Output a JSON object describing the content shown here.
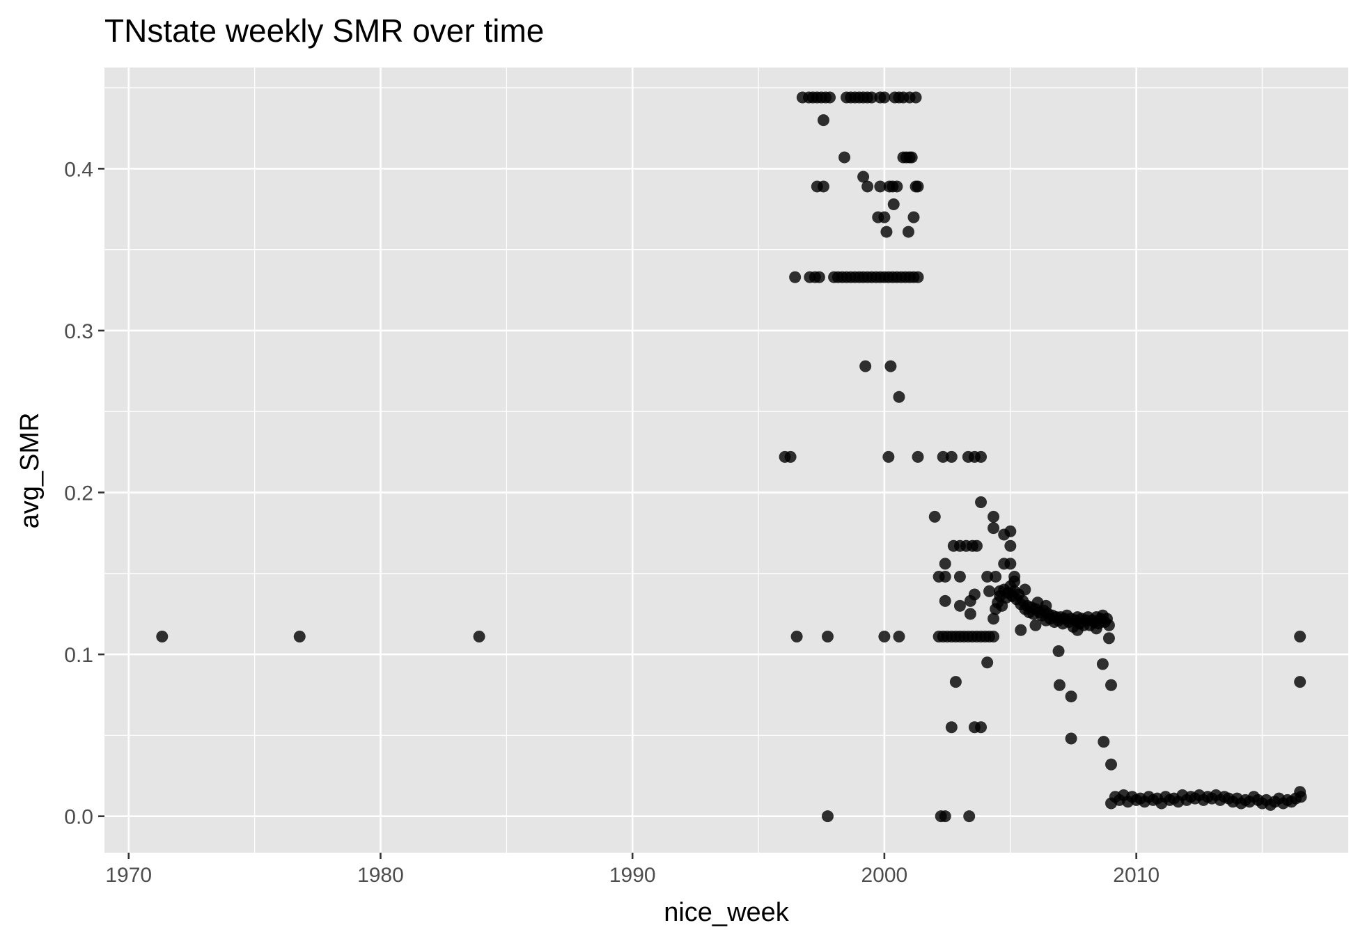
{
  "chart_data": {
    "type": "scatter",
    "title": "TNstate weekly SMR over time",
    "xlabel": "nice_week",
    "ylabel": "avg_SMR",
    "x_axis_type": "date",
    "xlim": [
      "1969-01-15",
      "2018-06-01"
    ],
    "ylim": [
      -0.0225,
      0.4625
    ],
    "x_ticks": [
      {
        "value": "1970-01-01",
        "label": "1970"
      },
      {
        "value": "1980-01-01",
        "label": "1980"
      },
      {
        "value": "1990-01-01",
        "label": "1990"
      },
      {
        "value": "2000-01-01",
        "label": "2000"
      },
      {
        "value": "2010-01-01",
        "label": "2010"
      }
    ],
    "y_ticks": [
      {
        "value": 0.0,
        "label": "0.0"
      },
      {
        "value": 0.1,
        "label": "0.1"
      },
      {
        "value": 0.2,
        "label": "0.2"
      },
      {
        "value": 0.3,
        "label": "0.3"
      },
      {
        "value": 0.4,
        "label": "0.4"
      }
    ],
    "grid": true,
    "legend": "none",
    "point_color": "#000000",
    "point_alpha": 0.8,
    "panel_background": "#e5e5e5",
    "grid_color": "#ffffff",
    "points": [
      {
        "x": "1971-05-01",
        "y": 0.111
      },
      {
        "x": "1976-10-15",
        "y": 0.111
      },
      {
        "x": "1983-12-01",
        "y": 0.111
      },
      {
        "x": "1996-01-20",
        "y": 0.222
      },
      {
        "x": "1996-04-10",
        "y": 0.222
      },
      {
        "x": "1996-06-15",
        "y": 0.333
      },
      {
        "x": "1996-07-10",
        "y": 0.111
      },
      {
        "x": "1996-10-01",
        "y": 0.444
      },
      {
        "x": "1997-01-01",
        "y": 0.444
      },
      {
        "x": "1997-03-01",
        "y": 0.444
      },
      {
        "x": "1997-05-01",
        "y": 0.444
      },
      {
        "x": "1997-07-01",
        "y": 0.444
      },
      {
        "x": "1997-09-01",
        "y": 0.444
      },
      {
        "x": "1997-11-01",
        "y": 0.444
      },
      {
        "x": "1998-07-01",
        "y": 0.444
      },
      {
        "x": "1998-09-01",
        "y": 0.444
      },
      {
        "x": "1998-11-01",
        "y": 0.444
      },
      {
        "x": "1999-01-01",
        "y": 0.444
      },
      {
        "x": "1999-03-01",
        "y": 0.444
      },
      {
        "x": "1999-05-01",
        "y": 0.444
      },
      {
        "x": "1999-07-01",
        "y": 0.444
      },
      {
        "x": "1999-11-01",
        "y": 0.444
      },
      {
        "x": "2000-01-01",
        "y": 0.444
      },
      {
        "x": "2000-06-01",
        "y": 0.444
      },
      {
        "x": "2000-08-01",
        "y": 0.444
      },
      {
        "x": "2000-10-01",
        "y": 0.444
      },
      {
        "x": "2001-01-01",
        "y": 0.444
      },
      {
        "x": "2001-04-01",
        "y": 0.444
      },
      {
        "x": "1997-08-01",
        "y": 0.43
      },
      {
        "x": "1998-06-01",
        "y": 0.407
      },
      {
        "x": "2000-10-01",
        "y": 0.407
      },
      {
        "x": "2000-11-15",
        "y": 0.407
      },
      {
        "x": "2001-01-01",
        "y": 0.407
      },
      {
        "x": "2001-02-01",
        "y": 0.407
      },
      {
        "x": "1999-03-01",
        "y": 0.395
      },
      {
        "x": "1997-05-01",
        "y": 0.389
      },
      {
        "x": "1997-08-01",
        "y": 0.389
      },
      {
        "x": "1999-05-01",
        "y": 0.389
      },
      {
        "x": "1999-11-01",
        "y": 0.389
      },
      {
        "x": "2000-03-15",
        "y": 0.389
      },
      {
        "x": "2000-05-01",
        "y": 0.389
      },
      {
        "x": "2000-07-01",
        "y": 0.389
      },
      {
        "x": "2001-04-01",
        "y": 0.389
      },
      {
        "x": "2001-05-01",
        "y": 0.389
      },
      {
        "x": "2000-05-15",
        "y": 0.378
      },
      {
        "x": "1999-10-01",
        "y": 0.37
      },
      {
        "x": "2000-01-01",
        "y": 0.37
      },
      {
        "x": "2001-03-01",
        "y": 0.37
      },
      {
        "x": "2000-02-01",
        "y": 0.361
      },
      {
        "x": "2000-12-15",
        "y": 0.361
      },
      {
        "x": "1997-01-15",
        "y": 0.333
      },
      {
        "x": "1997-04-01",
        "y": 0.333
      },
      {
        "x": "1997-06-01",
        "y": 0.333
      },
      {
        "x": "1998-01-01",
        "y": 0.333
      },
      {
        "x": "1998-03-01",
        "y": 0.333
      },
      {
        "x": "1998-05-01",
        "y": 0.333
      },
      {
        "x": "1998-07-01",
        "y": 0.333
      },
      {
        "x": "1998-09-01",
        "y": 0.333
      },
      {
        "x": "1998-11-01",
        "y": 0.333
      },
      {
        "x": "1999-01-01",
        "y": 0.333
      },
      {
        "x": "1999-03-01",
        "y": 0.333
      },
      {
        "x": "1999-05-01",
        "y": 0.333
      },
      {
        "x": "1999-07-01",
        "y": 0.333
      },
      {
        "x": "1999-09-01",
        "y": 0.333
      },
      {
        "x": "1999-11-01",
        "y": 0.333
      },
      {
        "x": "2000-01-01",
        "y": 0.333
      },
      {
        "x": "2000-03-01",
        "y": 0.333
      },
      {
        "x": "2000-05-01",
        "y": 0.333
      },
      {
        "x": "2000-07-01",
        "y": 0.333
      },
      {
        "x": "2000-09-01",
        "y": 0.333
      },
      {
        "x": "2000-11-01",
        "y": 0.333
      },
      {
        "x": "2001-01-01",
        "y": 0.333
      },
      {
        "x": "2001-03-01",
        "y": 0.333
      },
      {
        "x": "2001-05-01",
        "y": 0.333
      },
      {
        "x": "1999-04-01",
        "y": 0.278
      },
      {
        "x": "2000-04-01",
        "y": 0.278
      },
      {
        "x": "2000-08-01",
        "y": 0.259
      },
      {
        "x": "1997-10-01",
        "y": 0.111
      },
      {
        "x": "2000-01-01",
        "y": 0.111
      },
      {
        "x": "2000-08-01",
        "y": 0.111
      },
      {
        "x": "1997-10-01",
        "y": 0.0
      },
      {
        "x": "2000-03-01",
        "y": 0.222
      },
      {
        "x": "2001-05-01",
        "y": 0.222
      },
      {
        "x": "2002-05-01",
        "y": 0.222
      },
      {
        "x": "2002-09-01",
        "y": 0.222
      },
      {
        "x": "2003-05-01",
        "y": 0.222
      },
      {
        "x": "2003-08-01",
        "y": 0.222
      },
      {
        "x": "2003-11-01",
        "y": 0.222
      },
      {
        "x": "2003-11-01",
        "y": 0.194
      },
      {
        "x": "2002-01-01",
        "y": 0.185
      },
      {
        "x": "2004-05-01",
        "y": 0.185
      },
      {
        "x": "2004-05-01",
        "y": 0.178
      },
      {
        "x": "2005-01-01",
        "y": 0.176
      },
      {
        "x": "2004-10-01",
        "y": 0.174
      },
      {
        "x": "2002-10-01",
        "y": 0.167
      },
      {
        "x": "2003-01-01",
        "y": 0.167
      },
      {
        "x": "2003-04-01",
        "y": 0.167
      },
      {
        "x": "2003-07-01",
        "y": 0.167
      },
      {
        "x": "2003-09-01",
        "y": 0.167
      },
      {
        "x": "2005-01-01",
        "y": 0.167
      },
      {
        "x": "2002-06-01",
        "y": 0.156
      },
      {
        "x": "2004-10-01",
        "y": 0.156
      },
      {
        "x": "2005-01-01",
        "y": 0.156
      },
      {
        "x": "2002-03-01",
        "y": 0.148
      },
      {
        "x": "2002-06-01",
        "y": 0.148
      },
      {
        "x": "2003-01-01",
        "y": 0.148
      },
      {
        "x": "2004-02-01",
        "y": 0.148
      },
      {
        "x": "2004-06-01",
        "y": 0.148
      },
      {
        "x": "2005-03-01",
        "y": 0.148
      },
      {
        "x": "2004-03-01",
        "y": 0.139
      },
      {
        "x": "2004-08-01",
        "y": 0.139
      },
      {
        "x": "2003-08-01",
        "y": 0.137
      },
      {
        "x": "2003-06-01",
        "y": 0.133
      },
      {
        "x": "2002-06-01",
        "y": 0.133
      },
      {
        "x": "2003-01-01",
        "y": 0.13
      },
      {
        "x": "2003-06-01",
        "y": 0.125
      },
      {
        "x": "2002-03-01",
        "y": 0.111
      },
      {
        "x": "2002-05-01",
        "y": 0.111
      },
      {
        "x": "2002-07-01",
        "y": 0.111
      },
      {
        "x": "2002-09-01",
        "y": 0.111
      },
      {
        "x": "2002-11-01",
        "y": 0.111
      },
      {
        "x": "2003-01-01",
        "y": 0.111
      },
      {
        "x": "2003-03-01",
        "y": 0.111
      },
      {
        "x": "2003-05-01",
        "y": 0.111
      },
      {
        "x": "2003-07-01",
        "y": 0.111
      },
      {
        "x": "2003-09-01",
        "y": 0.111
      },
      {
        "x": "2003-11-01",
        "y": 0.111
      },
      {
        "x": "2004-01-01",
        "y": 0.111
      },
      {
        "x": "2004-03-01",
        "y": 0.111
      },
      {
        "x": "2004-05-01",
        "y": 0.111
      },
      {
        "x": "2004-05-01",
        "y": 0.122
      },
      {
        "x": "2004-06-01",
        "y": 0.128
      },
      {
        "x": "2004-07-01",
        "y": 0.132
      },
      {
        "x": "2004-08-01",
        "y": 0.136
      },
      {
        "x": "2004-09-01",
        "y": 0.13
      },
      {
        "x": "2004-10-01",
        "y": 0.14
      },
      {
        "x": "2004-11-01",
        "y": 0.135
      },
      {
        "x": "2004-12-01",
        "y": 0.138
      },
      {
        "x": "2005-01-01",
        "y": 0.142
      },
      {
        "x": "2005-02-01",
        "y": 0.136
      },
      {
        "x": "2005-03-01",
        "y": 0.139
      },
      {
        "x": "2005-04-01",
        "y": 0.134
      },
      {
        "x": "2005-05-01",
        "y": 0.137
      },
      {
        "x": "2005-06-01",
        "y": 0.131
      },
      {
        "x": "2005-07-01",
        "y": 0.133
      },
      {
        "x": "2005-08-01",
        "y": 0.128
      },
      {
        "x": "2005-09-01",
        "y": 0.13
      },
      {
        "x": "2005-10-01",
        "y": 0.126
      },
      {
        "x": "2005-11-01",
        "y": 0.129
      },
      {
        "x": "2005-12-01",
        "y": 0.125
      },
      {
        "x": "2006-01-01",
        "y": 0.128
      },
      {
        "x": "2006-02-01",
        "y": 0.132
      },
      {
        "x": "2006-03-01",
        "y": 0.126
      },
      {
        "x": "2006-04-01",
        "y": 0.124
      },
      {
        "x": "2006-05-01",
        "y": 0.127
      },
      {
        "x": "2006-06-01",
        "y": 0.121
      },
      {
        "x": "2006-07-01",
        "y": 0.125
      },
      {
        "x": "2006-08-01",
        "y": 0.122
      },
      {
        "x": "2006-09-01",
        "y": 0.124
      },
      {
        "x": "2006-10-01",
        "y": 0.12
      },
      {
        "x": "2006-11-01",
        "y": 0.123
      },
      {
        "x": "2006-12-01",
        "y": 0.121
      },
      {
        "x": "2007-01-01",
        "y": 0.123
      },
      {
        "x": "2007-02-01",
        "y": 0.119
      },
      {
        "x": "2007-03-01",
        "y": 0.122
      },
      {
        "x": "2007-04-01",
        "y": 0.124
      },
      {
        "x": "2007-05-01",
        "y": 0.12
      },
      {
        "x": "2007-06-01",
        "y": 0.122
      },
      {
        "x": "2007-07-01",
        "y": 0.117
      },
      {
        "x": "2007-08-01",
        "y": 0.121
      },
      {
        "x": "2007-09-01",
        "y": 0.123
      },
      {
        "x": "2007-10-01",
        "y": 0.119
      },
      {
        "x": "2007-11-01",
        "y": 0.122
      },
      {
        "x": "2007-12-01",
        "y": 0.118
      },
      {
        "x": "2008-01-01",
        "y": 0.121
      },
      {
        "x": "2008-02-01",
        "y": 0.123
      },
      {
        "x": "2008-03-01",
        "y": 0.118
      },
      {
        "x": "2008-04-01",
        "y": 0.121
      },
      {
        "x": "2008-05-01",
        "y": 0.12
      },
      {
        "x": "2008-06-01",
        "y": 0.123
      },
      {
        "x": "2008-07-01",
        "y": 0.119
      },
      {
        "x": "2008-08-01",
        "y": 0.122
      },
      {
        "x": "2008-09-01",
        "y": 0.124
      },
      {
        "x": "2008-10-01",
        "y": 0.12
      },
      {
        "x": "2008-11-01",
        "y": 0.122
      },
      {
        "x": "2008-12-01",
        "y": 0.118
      },
      {
        "x": "2005-03-01",
        "y": 0.145
      },
      {
        "x": "2005-06-01",
        "y": 0.115
      },
      {
        "x": "2005-08-01",
        "y": 0.14
      },
      {
        "x": "2006-01-01",
        "y": 0.118
      },
      {
        "x": "2006-06-01",
        "y": 0.13
      },
      {
        "x": "2007-09-01",
        "y": 0.115
      },
      {
        "x": "2008-06-01",
        "y": 0.116
      },
      {
        "x": "2004-02-01",
        "y": 0.095
      },
      {
        "x": "2006-12-01",
        "y": 0.102
      },
      {
        "x": "2006-12-15",
        "y": 0.081
      },
      {
        "x": "2007-06-01",
        "y": 0.074
      },
      {
        "x": "2007-06-01",
        "y": 0.048
      },
      {
        "x": "2008-09-01",
        "y": 0.094
      },
      {
        "x": "2008-12-01",
        "y": 0.11
      },
      {
        "x": "2009-01-01",
        "y": 0.081
      },
      {
        "x": "2008-09-15",
        "y": 0.046
      },
      {
        "x": "2009-01-01",
        "y": 0.032
      },
      {
        "x": "2002-04-01",
        "y": 0.0
      },
      {
        "x": "2002-06-01",
        "y": 0.0
      },
      {
        "x": "2003-05-15",
        "y": 0.0
      },
      {
        "x": "2002-11-01",
        "y": 0.083
      },
      {
        "x": "2002-09-01",
        "y": 0.055
      },
      {
        "x": "2003-08-01",
        "y": 0.055
      },
      {
        "x": "2003-11-01",
        "y": 0.055
      },
      {
        "x": "2009-01-01",
        "y": 0.008
      },
      {
        "x": "2009-03-01",
        "y": 0.012
      },
      {
        "x": "2009-05-01",
        "y": 0.01
      },
      {
        "x": "2009-07-01",
        "y": 0.013
      },
      {
        "x": "2009-09-01",
        "y": 0.009
      },
      {
        "x": "2009-11-01",
        "y": 0.012
      },
      {
        "x": "2010-01-01",
        "y": 0.01
      },
      {
        "x": "2010-03-01",
        "y": 0.011
      },
      {
        "x": "2010-05-01",
        "y": 0.009
      },
      {
        "x": "2010-07-01",
        "y": 0.012
      },
      {
        "x": "2010-09-01",
        "y": 0.01
      },
      {
        "x": "2010-11-01",
        "y": 0.011
      },
      {
        "x": "2011-01-01",
        "y": 0.008
      },
      {
        "x": "2011-03-01",
        "y": 0.012
      },
      {
        "x": "2011-05-01",
        "y": 0.01
      },
      {
        "x": "2011-07-01",
        "y": 0.011
      },
      {
        "x": "2011-09-01",
        "y": 0.009
      },
      {
        "x": "2011-11-01",
        "y": 0.013
      },
      {
        "x": "2012-01-01",
        "y": 0.01
      },
      {
        "x": "2012-03-01",
        "y": 0.012
      },
      {
        "x": "2012-05-01",
        "y": 0.011
      },
      {
        "x": "2012-07-01",
        "y": 0.013
      },
      {
        "x": "2012-09-01",
        "y": 0.01
      },
      {
        "x": "2012-11-01",
        "y": 0.012
      },
      {
        "x": "2013-01-01",
        "y": 0.011
      },
      {
        "x": "2013-03-01",
        "y": 0.013
      },
      {
        "x": "2013-05-01",
        "y": 0.01
      },
      {
        "x": "2013-07-01",
        "y": 0.012
      },
      {
        "x": "2013-09-01",
        "y": 0.011
      },
      {
        "x": "2013-11-01",
        "y": 0.009
      },
      {
        "x": "2014-01-01",
        "y": 0.011
      },
      {
        "x": "2014-03-01",
        "y": 0.008
      },
      {
        "x": "2014-05-01",
        "y": 0.01
      },
      {
        "x": "2014-07-01",
        "y": 0.009
      },
      {
        "x": "2014-09-01",
        "y": 0.012
      },
      {
        "x": "2014-11-01",
        "y": 0.01
      },
      {
        "x": "2015-01-01",
        "y": 0.008
      },
      {
        "x": "2015-03-01",
        "y": 0.01
      },
      {
        "x": "2015-05-01",
        "y": 0.007
      },
      {
        "x": "2015-07-01",
        "y": 0.009
      },
      {
        "x": "2015-09-01",
        "y": 0.011
      },
      {
        "x": "2015-11-01",
        "y": 0.008
      },
      {
        "x": "2016-01-01",
        "y": 0.01
      },
      {
        "x": "2016-03-01",
        "y": 0.009
      },
      {
        "x": "2016-05-01",
        "y": 0.011
      },
      {
        "x": "2016-07-01",
        "y": 0.015
      },
      {
        "x": "2016-07-15",
        "y": 0.012
      },
      {
        "x": "2016-07-01",
        "y": 0.111
      },
      {
        "x": "2016-07-01",
        "y": 0.083
      }
    ]
  }
}
